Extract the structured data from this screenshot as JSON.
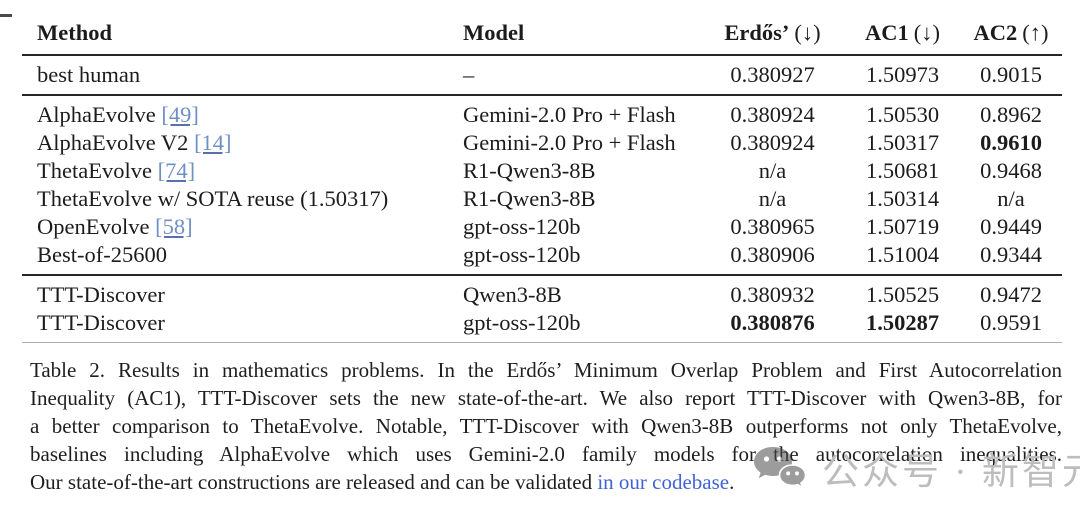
{
  "table": {
    "headers": [
      {
        "name": "Method",
        "dir": ""
      },
      {
        "name": "Model",
        "dir": ""
      },
      {
        "name": "Erdős’",
        "dir": "(↓)"
      },
      {
        "name": "AC1",
        "dir": "(↓)"
      },
      {
        "name": "AC2",
        "dir": "(↑)"
      }
    ],
    "groups": [
      {
        "rows": [
          {
            "method": "best human",
            "ref": "",
            "model": "–",
            "erdos": "0.380927",
            "ac1": "1.50973",
            "ac2": "0.9015",
            "bold": []
          }
        ]
      },
      {
        "rows": [
          {
            "method": "AlphaEvolve",
            "ref": "[49]",
            "model": "Gemini-2.0 Pro + Flash",
            "erdos": "0.380924",
            "ac1": "1.50530",
            "ac2": "0.8962",
            "bold": []
          },
          {
            "method": "AlphaEvolve V2",
            "ref": "[14]",
            "model": "Gemini-2.0 Pro + Flash",
            "erdos": "0.380924",
            "ac1": "1.50317",
            "ac2": "0.9610",
            "bold": [
              "ac2"
            ]
          },
          {
            "method": "ThetaEvolve",
            "ref": "[74]",
            "model": "R1-Qwen3-8B",
            "erdos": "n/a",
            "ac1": "1.50681",
            "ac2": "0.9468",
            "bold": []
          },
          {
            "method": "ThetaEvolve w/ SOTA reuse (1.50317)",
            "ref": "",
            "model": "R1-Qwen3-8B",
            "erdos": "n/a",
            "ac1": "1.50314",
            "ac2": "n/a",
            "bold": []
          },
          {
            "method": "OpenEvolve",
            "ref": "[58]",
            "model": "gpt-oss-120b",
            "erdos": "0.380965",
            "ac1": "1.50719",
            "ac2": "0.9449",
            "bold": []
          },
          {
            "method": "Best-of-25600",
            "ref": "",
            "model": "gpt-oss-120b",
            "erdos": "0.380906",
            "ac1": "1.51004",
            "ac2": "0.9344",
            "bold": []
          }
        ]
      },
      {
        "rows": [
          {
            "method": "TTT-Discover",
            "ref": "",
            "model": "Qwen3-8B",
            "erdos": "0.380932",
            "ac1": "1.50525",
            "ac2": "0.9472",
            "bold": []
          },
          {
            "method": "TTT-Discover",
            "ref": "",
            "model": "gpt-oss-120b",
            "erdos": "0.380876",
            "ac1": "1.50287",
            "ac2": "0.9591",
            "bold": [
              "erdos",
              "ac1"
            ]
          }
        ]
      }
    ]
  },
  "caption": {
    "lines": [
      "Table 2. Results in mathematics problems. In the Erdős’ Minimum Overlap Problem and First Autocorrelation",
      "Inequality (AC1), TTT-Discover sets the new state-of-the-art. We also report TTT-Discover with Qwen3-8B, for",
      "a better comparison to ThetaEvolve. Notable, TTT-Discover with Qwen3-8B outperforms not only ThetaEvolve,",
      "baselines including AlphaEvolve which uses Gemini-2.0 family models for the autocorrelation inequalities."
    ],
    "last_line_before_link": "Our state-of-the-art constructions are released and can be validated ",
    "link_text": "in our codebase",
    "last_line_after_link": "."
  },
  "watermark": {
    "icon": "wechat-icon",
    "text": "公众号 · 新智元"
  },
  "colors": {
    "citation_link": "#6e8fc5",
    "text_link": "#4263d6",
    "rule_dark": "#262626",
    "rule_light": "#adadad",
    "watermark_gray": "#bdbdbd"
  }
}
